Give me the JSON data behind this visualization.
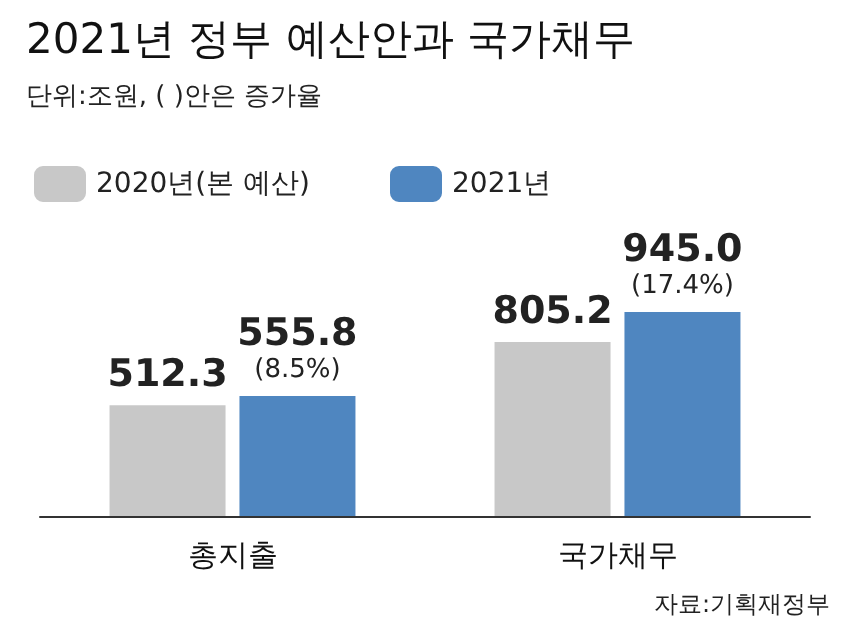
{
  "chart_data": {
    "type": "bar",
    "title": "2021년 정부 예산안과 국가채무",
    "subtitle": "단위:조원, ( )안은 증가율",
    "categories": [
      "총지출",
      "국가채무"
    ],
    "series": [
      {
        "name": "2020년(본 예산)",
        "color": "#c8c8c8",
        "values": [
          512.3,
          805.2
        ],
        "value_labels": [
          "512.3",
          "805.2"
        ]
      },
      {
        "name": "2021년",
        "color": "#4f86c0",
        "values": [
          555.8,
          945.0
        ],
        "value_labels": [
          "555.8\n(8.5%)",
          "945.0\n(17.4%)"
        ]
      }
    ],
    "legend": "top left",
    "annotations": [
      "자료:기획재정부"
    ]
  }
}
